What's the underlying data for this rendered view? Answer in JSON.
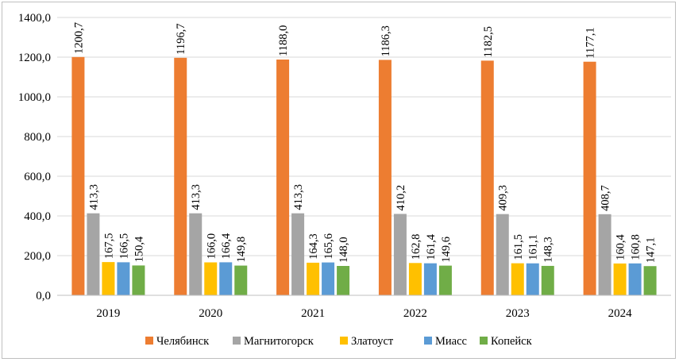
{
  "chart_data": {
    "type": "bar",
    "title": "",
    "xlabel": "",
    "ylabel": "",
    "ylim": [
      0,
      1400
    ],
    "y_ticks": [
      "0,0",
      "200,0",
      "400,0",
      "600,0",
      "800,0",
      "1000,0",
      "1200,0",
      "1400,0"
    ],
    "y_tick_values": [
      0,
      200,
      400,
      600,
      800,
      1000,
      1200,
      1400
    ],
    "grid": true,
    "legend_position": "bottom",
    "categories": [
      "2019",
      "2020",
      "2021",
      "2022",
      "2023",
      "2024"
    ],
    "series": [
      {
        "name": "Челябинск",
        "color": "#ED7D31",
        "values": [
          1200.7,
          1196.7,
          1188.0,
          1186.3,
          1182.5,
          1177.1
        ],
        "labels": [
          "1200,7",
          "1196,7",
          "1188,0",
          "1186,3",
          "1182,5",
          "1177,1"
        ]
      },
      {
        "name": "Магнитогорск",
        "color": "#A5A5A5",
        "values": [
          413.3,
          413.3,
          413.3,
          410.2,
          409.3,
          408.7
        ],
        "labels": [
          "413,3",
          "413,3",
          "413,3",
          "410,2",
          "409,3",
          "408,7"
        ]
      },
      {
        "name": "Златоуст",
        "color": "#FFC000",
        "values": [
          167.5,
          166.0,
          164.3,
          162.8,
          161.5,
          160.4
        ],
        "labels": [
          "167,5",
          "166,0",
          "164,3",
          "162,8",
          "161,5",
          "160,4"
        ]
      },
      {
        "name": "Миасс",
        "color": "#5B9BD5",
        "values": [
          166.5,
          166.4,
          165.6,
          161.4,
          161.1,
          160.8
        ],
        "labels": [
          "166,5",
          "166,4",
          "165,6",
          "161,4",
          "161,1",
          "160,8"
        ]
      },
      {
        "name": "Копейск",
        "color": "#70AD47",
        "values": [
          150.4,
          149.8,
          148.0,
          149.6,
          148.3,
          147.1
        ],
        "labels": [
          "150,4",
          "149,8",
          "148,0",
          "149,6",
          "148,3",
          "147,1"
        ]
      }
    ]
  }
}
